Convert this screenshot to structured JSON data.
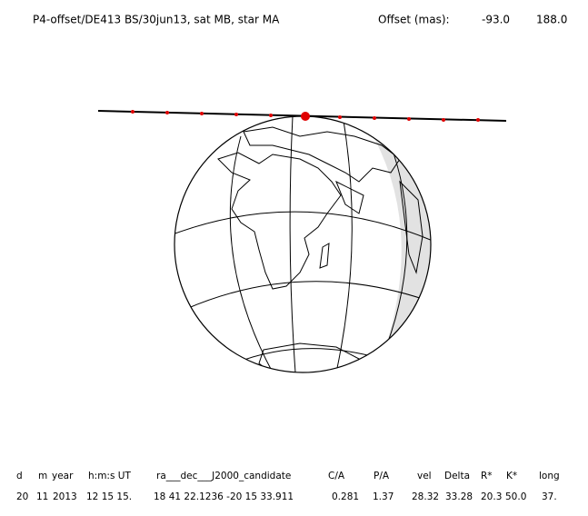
{
  "header": {
    "title": "P4-offset/DE413 BS/30jun13, sat MB, star MA",
    "offset_label": "Offset (mas):",
    "offset_values": [
      "-93.0",
      "188.0"
    ]
  },
  "table": {
    "columns": [
      "d",
      "m",
      "year",
      "h:m:s UT",
      "ra___dec___J2000_candidate",
      "C/A",
      "P/A",
      "vel",
      "Delta",
      "R*",
      "K*",
      "long"
    ],
    "rows": [
      [
        "20",
        "11",
        "2013",
        "12 15 15.",
        "18 41 22.1236 -20 15 33.911",
        "0.281",
        "1.37",
        "28.32",
        "33.28",
        "20.3",
        "50.0",
        "37."
      ]
    ]
  }
}
